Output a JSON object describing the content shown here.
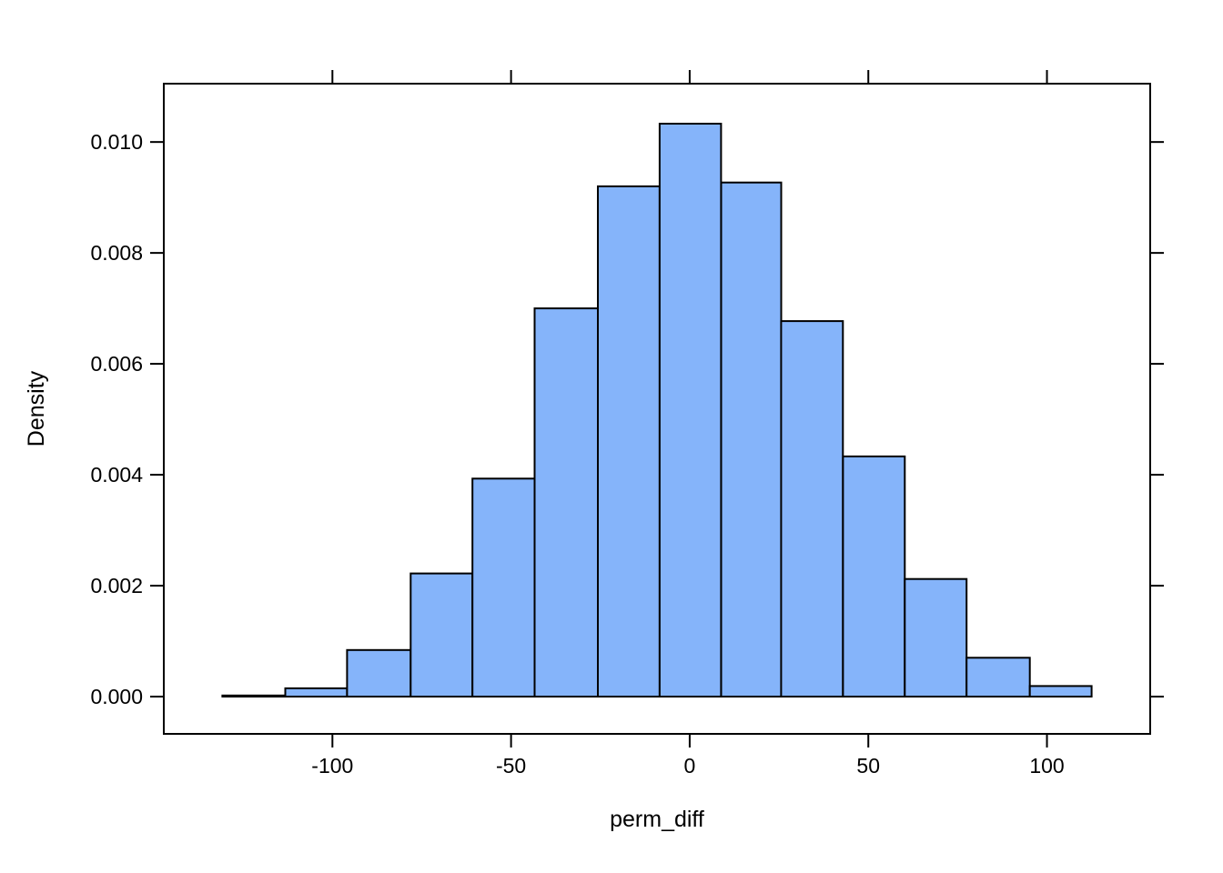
{
  "chart_data": {
    "type": "histogram",
    "title": "",
    "xlabel": "perm_diff",
    "ylabel": "Density",
    "bin_edges": [
      -130.8,
      -113.2,
      -95.9,
      -78.1,
      -60.8,
      -43.4,
      -25.7,
      -8.4,
      8.8,
      25.6,
      42.9,
      60.2,
      77.5,
      95.2,
      112.5
    ],
    "densities": [
      2e-05,
      0.00015,
      0.00084,
      0.00222,
      0.00393,
      0.007,
      0.0092,
      0.01033,
      0.00927,
      0.00677,
      0.00433,
      0.00212,
      0.0007,
      0.00019
    ],
    "x_ticks": [
      -100,
      -50,
      0,
      50,
      100
    ],
    "x_tick_labels": [
      "-100",
      "-50",
      "0",
      "50",
      "100"
    ],
    "y_ticks": [
      0.0,
      0.002,
      0.004,
      0.006,
      0.008,
      0.01
    ],
    "y_tick_labels": [
      "0.000",
      "0.002",
      "0.004",
      "0.006",
      "0.008",
      "0.010"
    ],
    "xlim": [
      -147.2,
      128.9
    ],
    "ylim": [
      -0.000672,
      0.011052
    ],
    "grid": false,
    "legend": null,
    "ticks_on_all_sides": true,
    "bar_fill": "#85B4FA",
    "bar_stroke": "#000000",
    "axis_color": "#000000",
    "background_color": "#ffffff"
  }
}
